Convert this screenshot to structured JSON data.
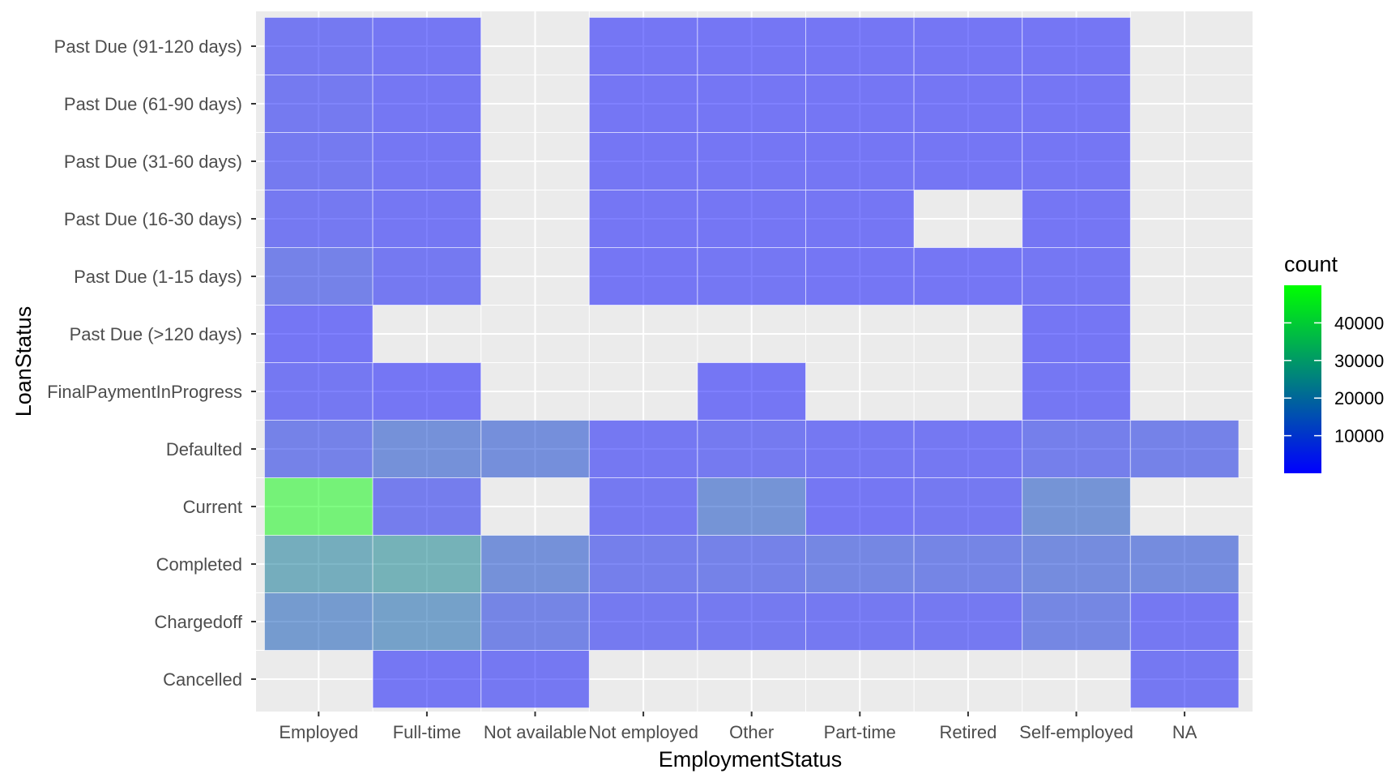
{
  "chart_data": {
    "type": "heatmap",
    "xlabel": "EmploymentStatus",
    "ylabel": "LoanStatus",
    "x_categories": [
      "Employed",
      "Full-time",
      "Not available",
      "Not employed",
      "Other",
      "Part-time",
      "Retired",
      "Self-employed",
      "NA"
    ],
    "y_categories": [
      "Cancelled",
      "Chargedoff",
      "Completed",
      "Current",
      "Defaulted",
      "FinalPaymentInProgress",
      "Past Due (>120 days)",
      "Past Due (1-15 days)",
      "Past Due (16-30 days)",
      "Past Due (31-60 days)",
      "Past Due (61-90 days)",
      "Past Due (91-120 days)"
    ],
    "cells": [
      {
        "x": "Employed",
        "y": "Cancelled",
        "count": null
      },
      {
        "x": "Full-time",
        "y": "Cancelled",
        "count": 800
      },
      {
        "x": "Not available",
        "y": "Cancelled",
        "count": 1200
      },
      {
        "x": "NA",
        "y": "Cancelled",
        "count": 900
      },
      {
        "x": "Employed",
        "y": "Chargedoff",
        "count": 15000
      },
      {
        "x": "Full-time",
        "y": "Chargedoff",
        "count": 17000
      },
      {
        "x": "Not available",
        "y": "Chargedoff",
        "count": 6000
      },
      {
        "x": "Not employed",
        "y": "Chargedoff",
        "count": 2000
      },
      {
        "x": "Other",
        "y": "Chargedoff",
        "count": 2000
      },
      {
        "x": "Part-time",
        "y": "Chargedoff",
        "count": 1500
      },
      {
        "x": "Retired",
        "y": "Chargedoff",
        "count": 1500
      },
      {
        "x": "Self-employed",
        "y": "Chargedoff",
        "count": 7000
      },
      {
        "x": "NA",
        "y": "Chargedoff",
        "count": 1000
      },
      {
        "x": "Employed",
        "y": "Completed",
        "count": 22000
      },
      {
        "x": "Full-time",
        "y": "Completed",
        "count": 24000
      },
      {
        "x": "Not available",
        "y": "Completed",
        "count": 11000
      },
      {
        "x": "Not employed",
        "y": "Completed",
        "count": 4000
      },
      {
        "x": "Other",
        "y": "Completed",
        "count": 5000
      },
      {
        "x": "Part-time",
        "y": "Completed",
        "count": 7000
      },
      {
        "x": "Retired",
        "y": "Completed",
        "count": 6000
      },
      {
        "x": "Self-employed",
        "y": "Completed",
        "count": 9000
      },
      {
        "x": "NA",
        "y": "Completed",
        "count": 9000
      },
      {
        "x": "Employed",
        "y": "Current",
        "count": 49000
      },
      {
        "x": "Full-time",
        "y": "Current",
        "count": 3000
      },
      {
        "x": "Not available",
        "y": "Current",
        "count": null
      },
      {
        "x": "Not employed",
        "y": "Current",
        "count": 1500
      },
      {
        "x": "Other",
        "y": "Current",
        "count": 12000
      },
      {
        "x": "Part-time",
        "y": "Current",
        "count": 700
      },
      {
        "x": "Retired",
        "y": "Current",
        "count": 1500
      },
      {
        "x": "Self-employed",
        "y": "Current",
        "count": 12000
      },
      {
        "x": "NA",
        "y": "Current",
        "count": null
      },
      {
        "x": "Employed",
        "y": "Defaulted",
        "count": 5000
      },
      {
        "x": "Full-time",
        "y": "Defaulted",
        "count": 11000
      },
      {
        "x": "Not available",
        "y": "Defaulted",
        "count": 10000
      },
      {
        "x": "Not employed",
        "y": "Defaulted",
        "count": 900
      },
      {
        "x": "Other",
        "y": "Defaulted",
        "count": 2000
      },
      {
        "x": "Part-time",
        "y": "Defaulted",
        "count": 1000
      },
      {
        "x": "Retired",
        "y": "Defaulted",
        "count": 1200
      },
      {
        "x": "Self-employed",
        "y": "Defaulted",
        "count": 4000
      },
      {
        "x": "NA",
        "y": "Defaulted",
        "count": 5000
      },
      {
        "x": "Employed",
        "y": "FinalPaymentInProgress",
        "count": 1200
      },
      {
        "x": "Full-time",
        "y": "FinalPaymentInProgress",
        "count": 400
      },
      {
        "x": "Other",
        "y": "FinalPaymentInProgress",
        "count": 300
      },
      {
        "x": "Self-employed",
        "y": "FinalPaymentInProgress",
        "count": 500
      },
      {
        "x": "Employed",
        "y": "Past Due (>120 days)",
        "count": 400
      },
      {
        "x": "Self-employed",
        "y": "Past Due (>120 days)",
        "count": 300
      },
      {
        "x": "Employed",
        "y": "Past Due (1-15 days)",
        "count": 5000
      },
      {
        "x": "Full-time",
        "y": "Past Due (1-15 days)",
        "count": 1500
      },
      {
        "x": "Not employed",
        "y": "Past Due (1-15 days)",
        "count": 300
      },
      {
        "x": "Other",
        "y": "Past Due (1-15 days)",
        "count": 600
      },
      {
        "x": "Part-time",
        "y": "Past Due (1-15 days)",
        "count": 300
      },
      {
        "x": "Retired",
        "y": "Past Due (1-15 days)",
        "count": 300
      },
      {
        "x": "Self-employed",
        "y": "Past Due (1-15 days)",
        "count": 800
      },
      {
        "x": "Employed",
        "y": "Past Due (16-30 days)",
        "count": 1500
      },
      {
        "x": "Full-time",
        "y": "Past Due (16-30 days)",
        "count": 500
      },
      {
        "x": "Not employed",
        "y": "Past Due (16-30 days)",
        "count": 200
      },
      {
        "x": "Other",
        "y": "Past Due (16-30 days)",
        "count": 300
      },
      {
        "x": "Part-time",
        "y": "Past Due (16-30 days)",
        "count": 200
      },
      {
        "x": "Self-employed",
        "y": "Past Due (16-30 days)",
        "count": 300
      },
      {
        "x": "Employed",
        "y": "Past Due (31-60 days)",
        "count": 2000
      },
      {
        "x": "Full-time",
        "y": "Past Due (31-60 days)",
        "count": 800
      },
      {
        "x": "Not employed",
        "y": "Past Due (31-60 days)",
        "count": 200
      },
      {
        "x": "Other",
        "y": "Past Due (31-60 days)",
        "count": 300
      },
      {
        "x": "Part-time",
        "y": "Past Due (31-60 days)",
        "count": 200
      },
      {
        "x": "Retired",
        "y": "Past Due (31-60 days)",
        "count": 200
      },
      {
        "x": "Self-employed",
        "y": "Past Due (31-60 days)",
        "count": 400
      },
      {
        "x": "Employed",
        "y": "Past Due (61-90 days)",
        "count": 1800
      },
      {
        "x": "Full-time",
        "y": "Past Due (61-90 days)",
        "count": 700
      },
      {
        "x": "Not employed",
        "y": "Past Due (61-90 days)",
        "count": 200
      },
      {
        "x": "Other",
        "y": "Past Due (61-90 days)",
        "count": 300
      },
      {
        "x": "Part-time",
        "y": "Past Due (61-90 days)",
        "count": 200
      },
      {
        "x": "Retired",
        "y": "Past Due (61-90 days)",
        "count": 200
      },
      {
        "x": "Self-employed",
        "y": "Past Due (61-90 days)",
        "count": 400
      },
      {
        "x": "Employed",
        "y": "Past Due (91-120 days)",
        "count": 1600
      },
      {
        "x": "Full-time",
        "y": "Past Due (91-120 days)",
        "count": 600
      },
      {
        "x": "Not employed",
        "y": "Past Due (91-120 days)",
        "count": 200
      },
      {
        "x": "Other",
        "y": "Past Due (91-120 days)",
        "count": 300
      },
      {
        "x": "Part-time",
        "y": "Past Due (91-120 days)",
        "count": 200
      },
      {
        "x": "Retired",
        "y": "Past Due (91-120 days)",
        "count": 200
      },
      {
        "x": "Self-employed",
        "y": "Past Due (91-120 days)",
        "count": 300
      }
    ],
    "legend": {
      "title": "count",
      "breaks": [
        10000,
        20000,
        30000,
        40000
      ],
      "break_labels": [
        "10000",
        "20000",
        "30000",
        "40000"
      ],
      "min": 1,
      "max": 50000,
      "low_color": "#0000FF",
      "high_color": "#00FF00",
      "placement": "right"
    },
    "tile_opacity": 0.5,
    "panel_background": "#EBEBEB",
    "grid": true
  }
}
